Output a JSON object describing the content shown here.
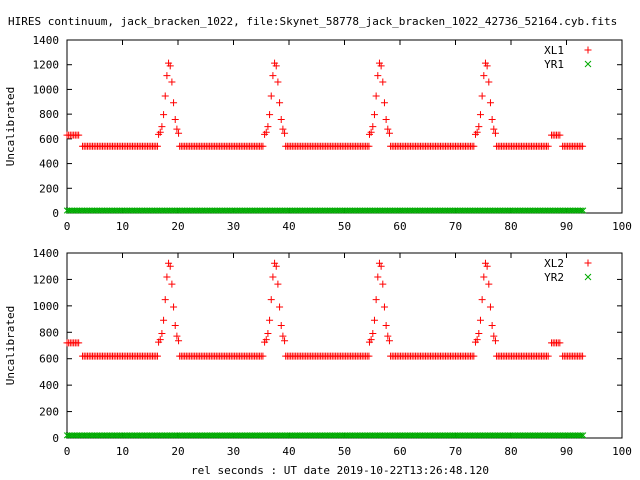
{
  "title": "HIRES continuum, jack_bracken_1022, file:Skynet_58778_jack_bracken_1022_42736_52164.cyb.fits",
  "xlabel": "rel seconds : UT date 2019-10-22T13:26:48.120",
  "chart_data": [
    {
      "type": "scatter",
      "ylabel": "Uncalibrated",
      "xlim": [
        0,
        100
      ],
      "ylim": [
        0,
        1400
      ],
      "xticks": [
        0,
        10,
        20,
        30,
        40,
        50,
        60,
        70,
        80,
        90,
        100
      ],
      "yticks": [
        0,
        200,
        400,
        600,
        800,
        1000,
        1200,
        1400
      ],
      "legend_position": "top-right",
      "series": [
        {
          "name": "XL1",
          "color": "#ff0000",
          "marker": "plus",
          "segments": [
            {
              "x_from": 0.0,
              "x_to": 2.2,
              "value": 630
            },
            {
              "x_from": 2.8,
              "x_to": 16.5,
              "value": 540
            },
            {
              "peak": 18.4,
              "height": 1220,
              "width": 1.05
            },
            {
              "x_from": 20.3,
              "x_to": 35.5,
              "value": 540
            },
            {
              "peak": 37.5,
              "height": 1220,
              "width": 1.05
            },
            {
              "x_from": 39.4,
              "x_to": 54.5,
              "value": 540
            },
            {
              "peak": 56.4,
              "height": 1220,
              "width": 1.05
            },
            {
              "x_from": 58.3,
              "x_to": 73.5,
              "value": 540
            },
            {
              "peak": 75.5,
              "height": 1220,
              "width": 1.05
            },
            {
              "x_from": 77.4,
              "x_to": 86.8,
              "value": 540
            },
            {
              "x_from": 87.3,
              "x_to": 88.8,
              "value": 630
            },
            {
              "x_from": 89.3,
              "x_to": 93.0,
              "value": 540
            }
          ]
        },
        {
          "name": "YR1",
          "color": "#00aa00",
          "marker": "x",
          "segments": [
            {
              "x_from": 0.0,
              "x_to": 93.0,
              "value": 20
            }
          ]
        }
      ]
    },
    {
      "type": "scatter",
      "ylabel": "Uncalibrated",
      "xlim": [
        0,
        100
      ],
      "ylim": [
        0,
        1400
      ],
      "xticks": [
        0,
        10,
        20,
        30,
        40,
        50,
        60,
        70,
        80,
        90,
        100
      ],
      "yticks": [
        0,
        200,
        400,
        600,
        800,
        1000,
        1200,
        1400
      ],
      "legend_position": "top-right",
      "series": [
        {
          "name": "XL2",
          "color": "#ff0000",
          "marker": "plus",
          "segments": [
            {
              "x_from": 0.0,
              "x_to": 2.2,
              "value": 720
            },
            {
              "x_from": 2.8,
              "x_to": 16.5,
              "value": 620
            },
            {
              "peak": 18.4,
              "height": 1330,
              "width": 1.05
            },
            {
              "x_from": 20.3,
              "x_to": 35.5,
              "value": 620
            },
            {
              "peak": 37.5,
              "height": 1330,
              "width": 1.05
            },
            {
              "x_from": 39.4,
              "x_to": 54.5,
              "value": 620
            },
            {
              "peak": 56.4,
              "height": 1330,
              "width": 1.05
            },
            {
              "x_from": 58.3,
              "x_to": 73.5,
              "value": 620
            },
            {
              "peak": 75.5,
              "height": 1330,
              "width": 1.05
            },
            {
              "x_from": 77.4,
              "x_to": 86.8,
              "value": 620
            },
            {
              "x_from": 87.3,
              "x_to": 88.8,
              "value": 720
            },
            {
              "x_from": 89.3,
              "x_to": 93.0,
              "value": 620
            }
          ]
        },
        {
          "name": "YR2",
          "color": "#00aa00",
          "marker": "x",
          "segments": [
            {
              "x_from": 0.0,
              "x_to": 93.0,
              "value": 20
            }
          ]
        }
      ]
    }
  ]
}
